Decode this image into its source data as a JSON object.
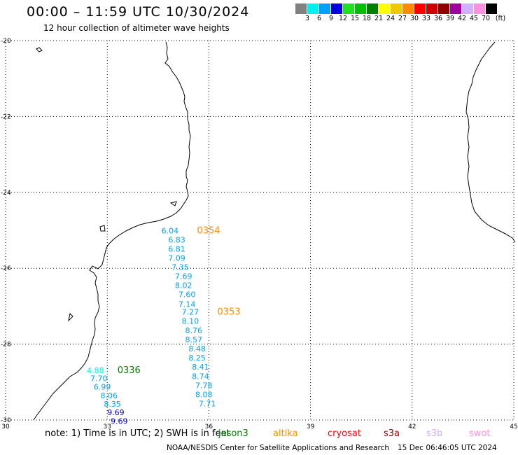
{
  "header": {
    "title": "00:00 – 11:59 UTC 10/30/2024",
    "subtitle": "12 hour collection of altimeter wave heights"
  },
  "colorbar": {
    "colors": [
      "#808080",
      "#00f0f0",
      "#00a0ff",
      "#0000e0",
      "#20e020",
      "#00c000",
      "#008000",
      "#ffff00",
      "#f0c800",
      "#ff8c00",
      "#ff0000",
      "#d00000",
      "#900000",
      "#a000a0",
      "#d0b0ff",
      "#ff90e0",
      "#000000"
    ],
    "labels": [
      "3",
      "6",
      "9",
      "12",
      "15",
      "18",
      "21",
      "24",
      "27",
      "30",
      "33",
      "36",
      "39",
      "42",
      "45",
      "70",
      "(ft)"
    ]
  },
  "map": {
    "xlim": [
      30,
      45
    ],
    "ylim": [
      -30,
      -20
    ],
    "x_ticks": [
      "30",
      "33",
      "36",
      "39",
      "42",
      "45"
    ],
    "y_ticks": [
      "-20",
      "-22",
      "-24",
      "-26",
      "-28",
      "-30"
    ],
    "grid": true
  },
  "tracks": [
    {
      "pass": "0354",
      "pass_color": "#ff8c00",
      "pass_lon": 35.65,
      "pass_lat": -25.08,
      "points": [
        {
          "lon": 34.6,
          "lat": -25.08,
          "value": "6.04",
          "color": "#00a0ff"
        },
        {
          "lon": 34.8,
          "lat": -25.32,
          "value": "6.83",
          "color": "#00a0ff"
        },
        {
          "lon": 34.8,
          "lat": -25.56,
          "value": "6.81",
          "color": "#00a0ff"
        },
        {
          "lon": 34.8,
          "lat": -25.8,
          "value": "7.09",
          "color": "#00a0ff"
        },
        {
          "lon": 34.9,
          "lat": -26.04,
          "value": "7.35",
          "color": "#00a0ff"
        },
        {
          "lon": 35.0,
          "lat": -26.28,
          "value": "7.69",
          "color": "#00a0ff"
        },
        {
          "lon": 35.0,
          "lat": -26.52,
          "value": "8.02",
          "color": "#00a0ff"
        },
        {
          "lon": 35.1,
          "lat": -26.76,
          "value": "7.60",
          "color": "#00a0ff"
        },
        {
          "lon": 35.1,
          "lat": -27.02,
          "value": "7.14",
          "color": "#00a0ff"
        }
      ]
    },
    {
      "pass": "0353",
      "pass_color": "#ff8c00",
      "pass_lon": 36.25,
      "pass_lat": -27.22,
      "points": [
        {
          "lon": 35.2,
          "lat": -27.22,
          "value": "7.27",
          "color": "#00a0ff"
        },
        {
          "lon": 35.2,
          "lat": -27.46,
          "value": "8.10",
          "color": "#00a0ff"
        },
        {
          "lon": 35.3,
          "lat": -27.71,
          "value": "8.76",
          "color": "#00a0ff"
        },
        {
          "lon": 35.3,
          "lat": -27.95,
          "value": "8.57",
          "color": "#00a0ff"
        },
        {
          "lon": 35.4,
          "lat": -28.19,
          "value": "8.48",
          "color": "#00a0ff"
        },
        {
          "lon": 35.4,
          "lat": -28.43,
          "value": "8.25",
          "color": "#00a0ff"
        },
        {
          "lon": 35.5,
          "lat": -28.67,
          "value": "8.41",
          "color": "#00a0ff"
        },
        {
          "lon": 35.5,
          "lat": -28.92,
          "value": "8.74",
          "color": "#00a0ff"
        },
        {
          "lon": 35.6,
          "lat": -29.16,
          "value": "7.78",
          "color": "#00a0ff"
        },
        {
          "lon": 35.6,
          "lat": -29.4,
          "value": "8.08",
          "color": "#00a0ff"
        },
        {
          "lon": 35.7,
          "lat": -29.64,
          "value": "7.71",
          "color": "#00a0ff"
        }
      ]
    },
    {
      "pass": "0336",
      "pass_color": "#008000",
      "pass_lon": 33.3,
      "pass_lat": -28.76,
      "points": [
        {
          "lon": 32.4,
          "lat": -28.76,
          "value": "4.88",
          "color": "#00f0f0"
        },
        {
          "lon": 32.5,
          "lat": -28.98,
          "value": "7.70",
          "color": "#00a0ff"
        },
        {
          "lon": 32.6,
          "lat": -29.2,
          "value": "6.99",
          "color": "#00a0ff"
        },
        {
          "lon": 32.8,
          "lat": -29.43,
          "value": "8.06",
          "color": "#00a0ff"
        },
        {
          "lon": 32.9,
          "lat": -29.65,
          "value": "8.35",
          "color": "#00a0ff"
        },
        {
          "lon": 33.0,
          "lat": -29.87,
          "value": "9.69",
          "color": "#0000e0"
        },
        {
          "lon": 33.1,
          "lat": -30.1,
          "value": "9.69",
          "color": "#0000e0"
        }
      ]
    }
  ],
  "note": "note:  1) Time is in UTC;  2) SWH is in feet",
  "satellites": [
    {
      "name": "jason3",
      "color": "#008000"
    },
    {
      "name": "altika",
      "color": "#ff8c00"
    },
    {
      "name": "cryosat",
      "color": "#ff0000"
    },
    {
      "name": "s3a",
      "color": "#900000"
    },
    {
      "name": "s3b",
      "color": "#d0b0ff"
    },
    {
      "name": "swot",
      "color": "#ff90e0"
    }
  ],
  "footer": {
    "credit": "NOAA/NESDIS Center for Satellite Applications and Research",
    "timestamp": "15 Dec 06:46:05 UTC 2024"
  }
}
